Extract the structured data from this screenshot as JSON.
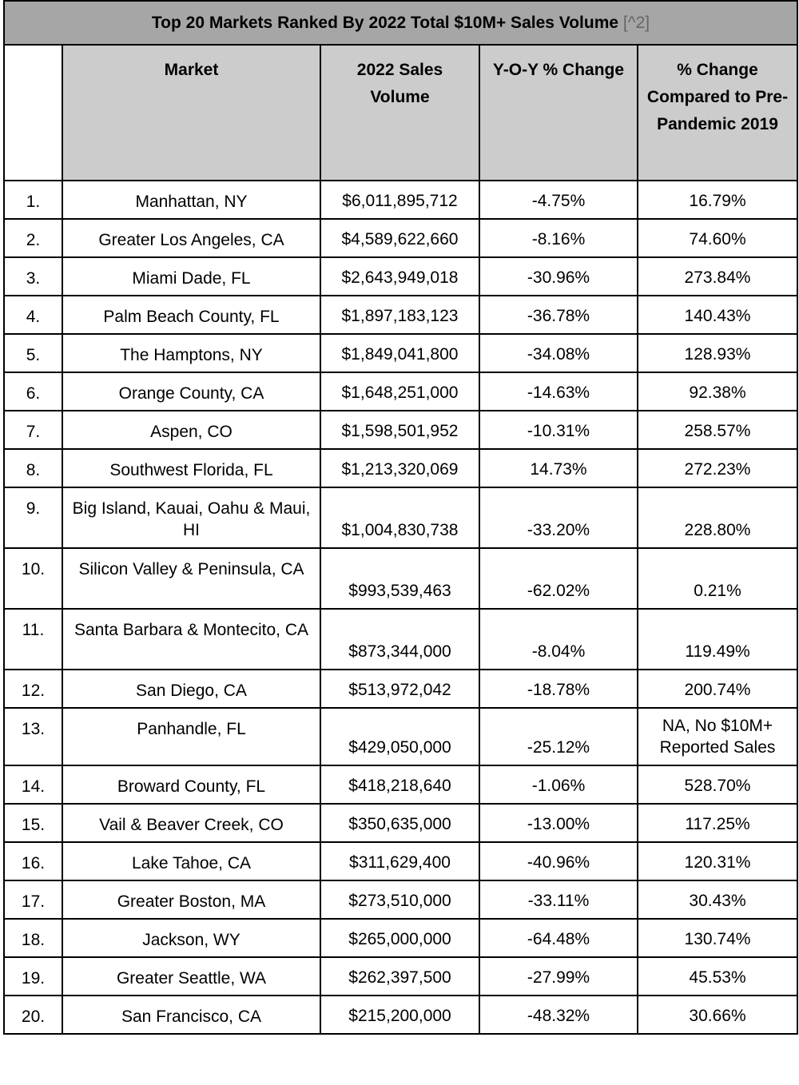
{
  "title": {
    "text": "Top 20 Markets Ranked By 2022 Total $10M+ Sales Volume",
    "ref": "[^2]"
  },
  "headers": {
    "rank": "",
    "market": "Market",
    "volume": "2022 Sales Volume",
    "yoy": "Y-O-Y % Change",
    "pre_pandemic": "% Change Compared to Pre-Pandemic 2019"
  },
  "rows": [
    {
      "rank": "1.",
      "market": "Manhattan, NY",
      "volume": "$6,011,895,712",
      "yoy": "-4.75%",
      "pre": "16.79%"
    },
    {
      "rank": "2.",
      "market": "Greater Los Angeles, CA",
      "volume": "$4,589,622,660",
      "yoy": "-8.16%",
      "pre": "74.60%"
    },
    {
      "rank": "3.",
      "market": "Miami Dade, FL",
      "volume": "$2,643,949,018",
      "yoy": "-30.96%",
      "pre": "273.84%"
    },
    {
      "rank": "4.",
      "market": "Palm Beach County, FL",
      "volume": "$1,897,183,123",
      "yoy": "-36.78%",
      "pre": "140.43%"
    },
    {
      "rank": "5.",
      "market": "The Hamptons, NY",
      "volume": "$1,849,041,800",
      "yoy": "-34.08%",
      "pre": "128.93%"
    },
    {
      "rank": "6.",
      "market": "Orange County, CA",
      "volume": "$1,648,251,000",
      "yoy": "-14.63%",
      "pre": "92.38%"
    },
    {
      "rank": "7.",
      "market": "Aspen, CO",
      "volume": "$1,598,501,952",
      "yoy": "-10.31%",
      "pre": "258.57%"
    },
    {
      "rank": "8.",
      "market": "Southwest Florida, FL",
      "volume": "$1,213,320,069",
      "yoy": "14.73%",
      "pre": "272.23%"
    },
    {
      "rank": "9.",
      "market": "Big Island, Kauai, Oahu & Maui, HI",
      "volume": "$1,004,830,738",
      "yoy": "-33.20%",
      "pre": "228.80%"
    },
    {
      "rank": "10.",
      "market": "Silicon Valley & Peninsula, CA",
      "volume": "$993,539,463",
      "yoy": "-62.02%",
      "pre": "0.21%"
    },
    {
      "rank": "11.",
      "market": "Santa Barbara & Montecito, CA",
      "volume": "$873,344,000",
      "yoy": "-8.04%",
      "pre": "119.49%"
    },
    {
      "rank": "12.",
      "market": "San Diego, CA",
      "volume": "$513,972,042",
      "yoy": "-18.78%",
      "pre": "200.74%"
    },
    {
      "rank": "13.",
      "market": "Panhandle, FL",
      "volume": "$429,050,000",
      "yoy": "-25.12%",
      "pre": "NA, No $10M+ Reported Sales"
    },
    {
      "rank": "14.",
      "market": "Broward County, FL",
      "volume": "$418,218,640",
      "yoy": "-1.06%",
      "pre": "528.70%"
    },
    {
      "rank": "15.",
      "market": "Vail & Beaver Creek, CO",
      "volume": "$350,635,000",
      "yoy": "-13.00%",
      "pre": "117.25%"
    },
    {
      "rank": "16.",
      "market": "Lake Tahoe, CA",
      "volume": "$311,629,400",
      "yoy": "-40.96%",
      "pre": "120.31%"
    },
    {
      "rank": "17.",
      "market": "Greater Boston, MA",
      "volume": "$273,510,000",
      "yoy": "-33.11%",
      "pre": "30.43%"
    },
    {
      "rank": "18.",
      "market": "Jackson, WY",
      "volume": "$265,000,000",
      "yoy": "-64.48%",
      "pre": "130.74%"
    },
    {
      "rank": "19.",
      "market": "Greater Seattle, WA",
      "volume": "$262,397,500",
      "yoy": "-27.99%",
      "pre": "45.53%"
    },
    {
      "rank": "20.",
      "market": "San Francisco, CA",
      "volume": "$215,200,000",
      "yoy": "-48.32%",
      "pre": "30.66%"
    }
  ]
}
